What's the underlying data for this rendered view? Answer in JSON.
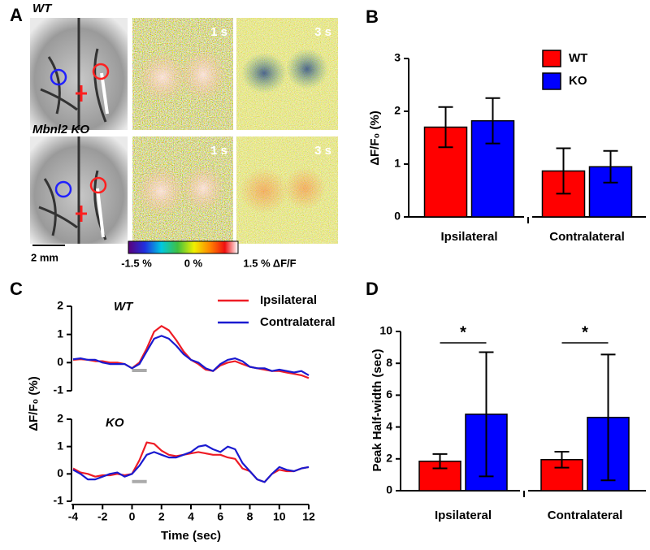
{
  "panel_labels": [
    "A",
    "B",
    "C",
    "D"
  ],
  "panel_a": {
    "rows": [
      {
        "label": "WT",
        "frames": [
          "1 s",
          "3 s"
        ]
      },
      {
        "label": "Mbnl2 KO",
        "frames": [
          "1 s",
          "3 s"
        ]
      }
    ],
    "scale_bar": "2 mm",
    "colorbar_labels": [
      "-1.5 %",
      "0 %",
      "1.5 % ΔF/F"
    ]
  },
  "chart_data": [
    {
      "type": "bar",
      "ylabel": "ΔF/F₀ (%)",
      "categories": [
        "Ipsilateral",
        "Contralateral"
      ],
      "series": [
        {
          "name": "WT",
          "color": "#ff0000",
          "values": [
            1.7,
            0.87
          ],
          "errors": [
            0.38,
            0.43
          ]
        },
        {
          "name": "KO",
          "color": "#0000ff",
          "values": [
            1.82,
            0.95
          ],
          "errors": [
            0.43,
            0.3
          ]
        }
      ],
      "ylim": [
        0,
        3
      ],
      "yticks": [
        0,
        1,
        2,
        3
      ]
    },
    {
      "type": "line",
      "annotation": "WT",
      "x": [
        -4,
        -3.5,
        -3,
        -2.5,
        -2,
        -1.5,
        -1,
        -0.5,
        0,
        0.5,
        1,
        1.5,
        2,
        2.5,
        3,
        3.5,
        4,
        4.5,
        5,
        5.5,
        6,
        6.5,
        7,
        7.5,
        8,
        8.5,
        9,
        9.5,
        10,
        10.5,
        11,
        11.5,
        12
      ],
      "series": [
        {
          "name": "Ipsilateral",
          "color": "#ee1c25",
          "values": [
            0.1,
            0.12,
            0.1,
            0.05,
            0.05,
            0,
            0,
            -0.05,
            -0.2,
            0,
            0.5,
            1.1,
            1.3,
            1.15,
            0.8,
            0.4,
            0.1,
            -0.05,
            -0.25,
            -0.3,
            -0.1,
            0,
            0.05,
            -0.05,
            -0.15,
            -0.2,
            -0.25,
            -0.3,
            -0.3,
            -0.35,
            -0.4,
            -0.45,
            -0.55
          ]
        },
        {
          "name": "Contralateral",
          "color": "#1a1ad0",
          "values": [
            0.12,
            0.15,
            0.1,
            0.1,
            0,
            -0.05,
            -0.05,
            -0.05,
            -0.2,
            -0.05,
            0.4,
            0.85,
            0.95,
            0.85,
            0.6,
            0.3,
            0.1,
            0,
            -0.2,
            -0.3,
            -0.05,
            0.1,
            0.15,
            0.05,
            -0.15,
            -0.2,
            -0.2,
            -0.3,
            -0.25,
            -0.3,
            -0.35,
            -0.3,
            -0.45
          ]
        }
      ],
      "stimulus": [
        0,
        1
      ],
      "xlim": [
        -4,
        12
      ],
      "ylim": [
        -1,
        2
      ],
      "yticks": [
        -1,
        0,
        1,
        2
      ]
    },
    {
      "type": "line",
      "annotation": "KO",
      "ylabel": "ΔF/F₀ (%)",
      "xlabel": "Time (sec)",
      "x": [
        -4,
        -3.5,
        -3,
        -2.5,
        -2,
        -1.5,
        -1,
        -0.5,
        0,
        0.5,
        1,
        1.5,
        2,
        2.5,
        3,
        3.5,
        4,
        4.5,
        5,
        5.5,
        6,
        6.5,
        7,
        7.5,
        8,
        8.5,
        9,
        9.5,
        10,
        10.5,
        11,
        11.5,
        12
      ],
      "series": [
        {
          "color": "#ee1c25",
          "values": [
            0.2,
            0.05,
            0,
            -0.1,
            -0.05,
            -0.05,
            0,
            -0.05,
            0,
            0.5,
            1.15,
            1.1,
            0.85,
            0.7,
            0.65,
            0.7,
            0.75,
            0.8,
            0.75,
            0.7,
            0.7,
            0.6,
            0.55,
            0.2,
            0.1,
            -0.2,
            -0.3,
            0,
            0.15,
            0.1,
            0.1,
            0.2,
            0.25
          ]
        },
        {
          "color": "#1a1ad0",
          "values": [
            0.15,
            0,
            -0.2,
            -0.2,
            -0.1,
            0,
            0.05,
            -0.1,
            0,
            0.3,
            0.7,
            0.8,
            0.7,
            0.6,
            0.6,
            0.7,
            0.8,
            1,
            1.05,
            0.9,
            0.8,
            1,
            0.9,
            0.4,
            0.1,
            -0.2,
            -0.3,
            0,
            0.25,
            0.15,
            0.1,
            0.2,
            0.25
          ]
        }
      ],
      "stimulus": [
        0,
        1
      ],
      "xlim": [
        -4,
        12
      ],
      "xticks": [
        -4,
        -2,
        0,
        2,
        4,
        6,
        8,
        10,
        12
      ],
      "ylim": [
        -1,
        2
      ],
      "yticks": [
        -1,
        0,
        1,
        2
      ]
    },
    {
      "type": "bar",
      "ylabel": "Peak Half-width (sec)",
      "categories": [
        "Ipsilateral",
        "Contralateral"
      ],
      "series": [
        {
          "color": "#ff0000",
          "values": [
            1.85,
            1.95
          ],
          "errors": [
            0.45,
            0.5
          ]
        },
        {
          "color": "#0000ff",
          "values": [
            4.8,
            4.6
          ],
          "errors": [
            3.9,
            3.95
          ]
        }
      ],
      "annotations": [
        "*",
        "*"
      ],
      "ylim": [
        0,
        10
      ],
      "yticks": [
        0,
        2,
        4,
        6,
        8,
        10
      ]
    }
  ]
}
